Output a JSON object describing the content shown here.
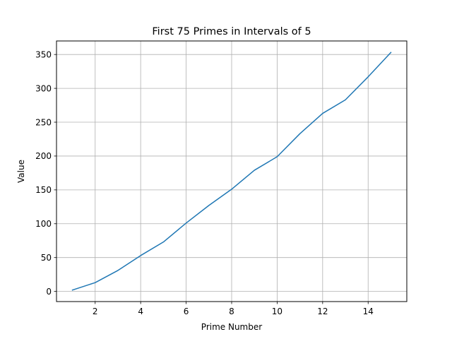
{
  "chart_data": {
    "type": "line",
    "title": "First 75 Primes in Intervals of 5",
    "xlabel": "Prime Number",
    "ylabel": "Value",
    "xlim": [
      0.3,
      15.7
    ],
    "ylim": [
      -15,
      370
    ],
    "xticks": [
      2,
      4,
      6,
      8,
      10,
      12,
      14
    ],
    "yticks": [
      0,
      50,
      100,
      150,
      200,
      250,
      300,
      350
    ],
    "grid": true,
    "legend": "none",
    "series": [
      {
        "color": "#1f77b4",
        "x": [
          1,
          2,
          3,
          4,
          5,
          6,
          7,
          8,
          9,
          10,
          11,
          12,
          13,
          14,
          15
        ],
        "y": [
          2,
          13,
          31,
          53,
          73,
          101,
          127,
          151,
          179,
          199,
          233,
          263,
          283,
          317,
          353
        ]
      }
    ]
  }
}
